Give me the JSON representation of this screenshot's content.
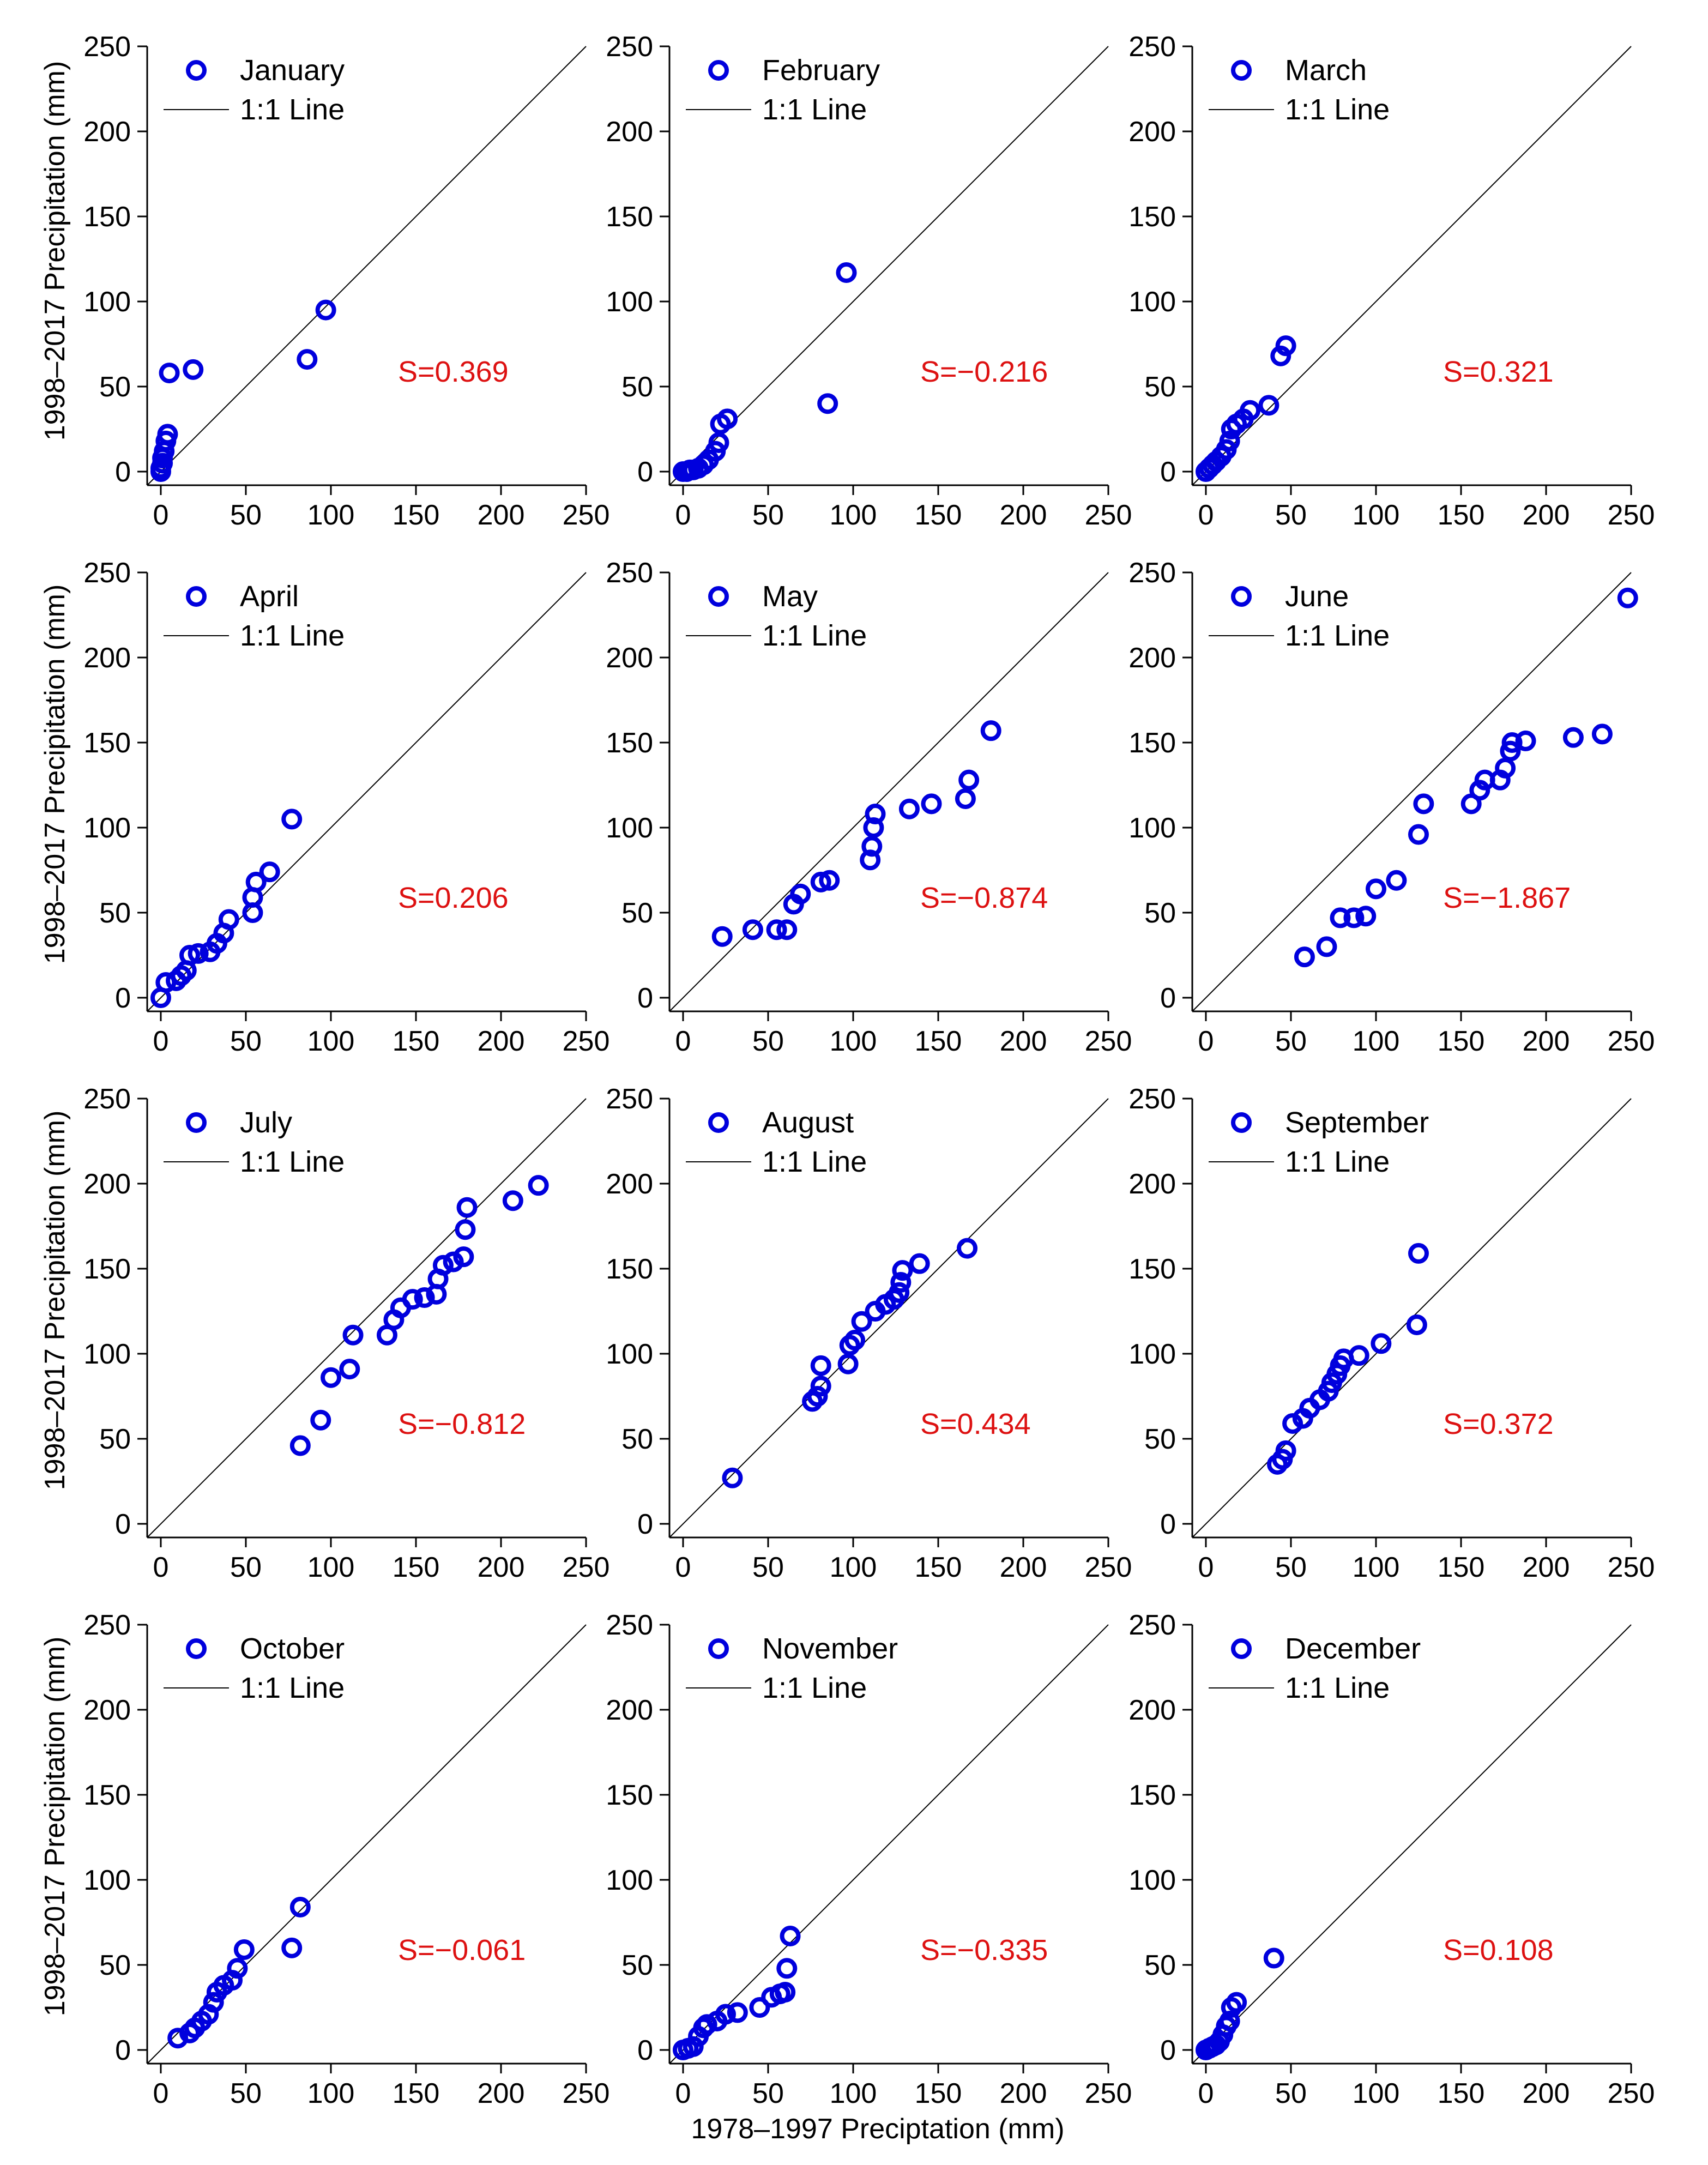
{
  "figure": {
    "shared_ylabel": "1998–2017 Precipitation (mm)",
    "shared_xlabel": "1978–1997 Preciptation (mm)",
    "legend_line_label": "1:1 Line",
    "colors": {
      "points": "#0000dd",
      "stat_text": "#dd1111",
      "axis": "#000000",
      "line": "#000000"
    }
  },
  "chart_data": [
    {
      "type": "scatter",
      "month": "January",
      "stat": "S=0.369",
      "xlim": [
        -8,
        250
      ],
      "ylim": [
        -8,
        250
      ],
      "ticks": [
        0,
        50,
        100,
        150,
        200,
        250
      ],
      "points": [
        [
          0,
          0
        ],
        [
          0,
          2
        ],
        [
          1,
          5
        ],
        [
          1,
          8
        ],
        [
          2,
          12
        ],
        [
          3,
          18
        ],
        [
          4,
          22
        ],
        [
          5,
          58
        ],
        [
          19,
          60
        ],
        [
          86,
          66
        ],
        [
          97,
          95
        ]
      ]
    },
    {
      "type": "scatter",
      "month": "February",
      "stat": "S=−0.216",
      "xlim": [
        -8,
        250
      ],
      "ylim": [
        -8,
        250
      ],
      "ticks": [
        0,
        50,
        100,
        150,
        200,
        250
      ],
      "points": [
        [
          0,
          0
        ],
        [
          2,
          0
        ],
        [
          4,
          1
        ],
        [
          6,
          1
        ],
        [
          9,
          2
        ],
        [
          12,
          4
        ],
        [
          15,
          7
        ],
        [
          19,
          12
        ],
        [
          21,
          17
        ],
        [
          22,
          28
        ],
        [
          26,
          31
        ],
        [
          85,
          40
        ],
        [
          96,
          117
        ]
      ]
    },
    {
      "type": "scatter",
      "month": "March",
      "stat": "S=0.321",
      "xlim": [
        -8,
        250
      ],
      "ylim": [
        -8,
        250
      ],
      "ticks": [
        0,
        50,
        100,
        150,
        200,
        250
      ],
      "points": [
        [
          0,
          0
        ],
        [
          2,
          2
        ],
        [
          4,
          4
        ],
        [
          6,
          6
        ],
        [
          9,
          9
        ],
        [
          12,
          13
        ],
        [
          14,
          18
        ],
        [
          15,
          25
        ],
        [
          18,
          28
        ],
        [
          22,
          31
        ],
        [
          26,
          36
        ],
        [
          37,
          39
        ],
        [
          44,
          68
        ],
        [
          47,
          74
        ]
      ]
    },
    {
      "type": "scatter",
      "month": "April",
      "stat": "S=0.206",
      "xlim": [
        -8,
        250
      ],
      "ylim": [
        -8,
        250
      ],
      "ticks": [
        0,
        50,
        100,
        150,
        200,
        250
      ],
      "points": [
        [
          0,
          0
        ],
        [
          3,
          9
        ],
        [
          9,
          10
        ],
        [
          12,
          13
        ],
        [
          15,
          16
        ],
        [
          17,
          25
        ],
        [
          22,
          26
        ],
        [
          29,
          27
        ],
        [
          33,
          32
        ],
        [
          37,
          38
        ],
        [
          40,
          46
        ],
        [
          54,
          50
        ],
        [
          54,
          59
        ],
        [
          56,
          68
        ],
        [
          64,
          74
        ],
        [
          77,
          105
        ]
      ]
    },
    {
      "type": "scatter",
      "month": "May",
      "stat": "S=−0.874",
      "xlim": [
        -8,
        250
      ],
      "ylim": [
        -8,
        250
      ],
      "ticks": [
        0,
        50,
        100,
        150,
        200,
        250
      ],
      "points": [
        [
          23,
          36
        ],
        [
          41,
          40
        ],
        [
          55,
          40
        ],
        [
          61,
          40
        ],
        [
          65,
          55
        ],
        [
          69,
          61
        ],
        [
          81,
          68
        ],
        [
          86,
          69
        ],
        [
          110,
          81
        ],
        [
          111,
          89
        ],
        [
          112,
          100
        ],
        [
          113,
          108
        ],
        [
          133,
          111
        ],
        [
          146,
          114
        ],
        [
          166,
          117
        ],
        [
          168,
          128
        ],
        [
          181,
          157
        ]
      ]
    },
    {
      "type": "scatter",
      "month": "June",
      "stat": "S=−1.867",
      "xlim": [
        -8,
        250
      ],
      "ylim": [
        -8,
        250
      ],
      "ticks": [
        0,
        50,
        100,
        150,
        200,
        250
      ],
      "points": [
        [
          58,
          24
        ],
        [
          71,
          30
        ],
        [
          79,
          47
        ],
        [
          87,
          47
        ],
        [
          94,
          48
        ],
        [
          100,
          64
        ],
        [
          112,
          69
        ],
        [
          125,
          96
        ],
        [
          128,
          114
        ],
        [
          156,
          114
        ],
        [
          161,
          122
        ],
        [
          164,
          128
        ],
        [
          173,
          128
        ],
        [
          176,
          135
        ],
        [
          179,
          145
        ],
        [
          180,
          150
        ],
        [
          188,
          151
        ],
        [
          216,
          153
        ],
        [
          233,
          155
        ],
        [
          248,
          235
        ]
      ]
    },
    {
      "type": "scatter",
      "month": "July",
      "stat": "S=−0.812",
      "xlim": [
        -8,
        250
      ],
      "ylim": [
        -8,
        250
      ],
      "ticks": [
        0,
        50,
        100,
        150,
        200,
        250
      ],
      "points": [
        [
          82,
          46
        ],
        [
          94,
          61
        ],
        [
          100,
          86
        ],
        [
          111,
          91
        ],
        [
          113,
          111
        ],
        [
          133,
          111
        ],
        [
          137,
          120
        ],
        [
          141,
          127
        ],
        [
          148,
          132
        ],
        [
          155,
          133
        ],
        [
          162,
          135
        ],
        [
          163,
          144
        ],
        [
          166,
          152
        ],
        [
          172,
          154
        ],
        [
          178,
          157
        ],
        [
          179,
          173
        ],
        [
          180,
          186
        ],
        [
          207,
          190
        ],
        [
          222,
          199
        ]
      ]
    },
    {
      "type": "scatter",
      "month": "August",
      "stat": "S=0.434",
      "xlim": [
        -8,
        250
      ],
      "ylim": [
        -8,
        250
      ],
      "ticks": [
        0,
        50,
        100,
        150,
        200,
        250
      ],
      "points": [
        [
          29,
          27
        ],
        [
          76,
          72
        ],
        [
          79,
          75
        ],
        [
          81,
          81
        ],
        [
          81,
          93
        ],
        [
          97,
          94
        ],
        [
          98,
          105
        ],
        [
          101,
          108
        ],
        [
          105,
          119
        ],
        [
          113,
          125
        ],
        [
          119,
          129
        ],
        [
          124,
          132
        ],
        [
          127,
          136
        ],
        [
          128,
          142
        ],
        [
          129,
          149
        ],
        [
          139,
          153
        ],
        [
          167,
          162
        ]
      ]
    },
    {
      "type": "scatter",
      "month": "September",
      "stat": "S=0.372",
      "xlim": [
        -8,
        250
      ],
      "ylim": [
        -8,
        250
      ],
      "ticks": [
        0,
        50,
        100,
        150,
        200,
        250
      ],
      "points": [
        [
          42,
          35
        ],
        [
          45,
          38
        ],
        [
          47,
          43
        ],
        [
          51,
          59
        ],
        [
          57,
          62
        ],
        [
          61,
          68
        ],
        [
          67,
          73
        ],
        [
          72,
          78
        ],
        [
          74,
          83
        ],
        [
          77,
          88
        ],
        [
          79,
          93
        ],
        [
          81,
          97
        ],
        [
          90,
          99
        ],
        [
          103,
          106
        ],
        [
          124,
          117
        ],
        [
          125,
          159
        ]
      ]
    },
    {
      "type": "scatter",
      "month": "October",
      "stat": "S=−0.061",
      "xlim": [
        -8,
        250
      ],
      "ylim": [
        -8,
        250
      ],
      "ticks": [
        0,
        50,
        100,
        150,
        200,
        250
      ],
      "points": [
        [
          10,
          7
        ],
        [
          17,
          10
        ],
        [
          20,
          13
        ],
        [
          24,
          17
        ],
        [
          28,
          21
        ],
        [
          31,
          28
        ],
        [
          33,
          34
        ],
        [
          37,
          38
        ],
        [
          42,
          41
        ],
        [
          45,
          48
        ],
        [
          49,
          59
        ],
        [
          77,
          60
        ],
        [
          82,
          84
        ]
      ]
    },
    {
      "type": "scatter",
      "month": "November",
      "stat": "S=−0.335",
      "xlim": [
        -8,
        250
      ],
      "ylim": [
        -8,
        250
      ],
      "ticks": [
        0,
        50,
        100,
        150,
        200,
        250
      ],
      "points": [
        [
          0,
          0
        ],
        [
          3,
          1
        ],
        [
          6,
          2
        ],
        [
          9,
          8
        ],
        [
          12,
          13
        ],
        [
          14,
          15
        ],
        [
          20,
          17
        ],
        [
          25,
          21
        ],
        [
          32,
          22
        ],
        [
          45,
          25
        ],
        [
          52,
          31
        ],
        [
          57,
          33
        ],
        [
          60,
          34
        ],
        [
          61,
          48
        ],
        [
          63,
          67
        ]
      ]
    },
    {
      "type": "scatter",
      "month": "December",
      "stat": "S=0.108",
      "xlim": [
        -8,
        250
      ],
      "ylim": [
        -8,
        250
      ],
      "ticks": [
        0,
        50,
        100,
        150,
        200,
        250
      ],
      "points": [
        [
          0,
          0
        ],
        [
          2,
          1
        ],
        [
          4,
          2
        ],
        [
          6,
          3
        ],
        [
          8,
          5
        ],
        [
          10,
          9
        ],
        [
          12,
          14
        ],
        [
          14,
          17
        ],
        [
          15,
          25
        ],
        [
          18,
          28
        ],
        [
          40,
          54
        ]
      ]
    }
  ]
}
